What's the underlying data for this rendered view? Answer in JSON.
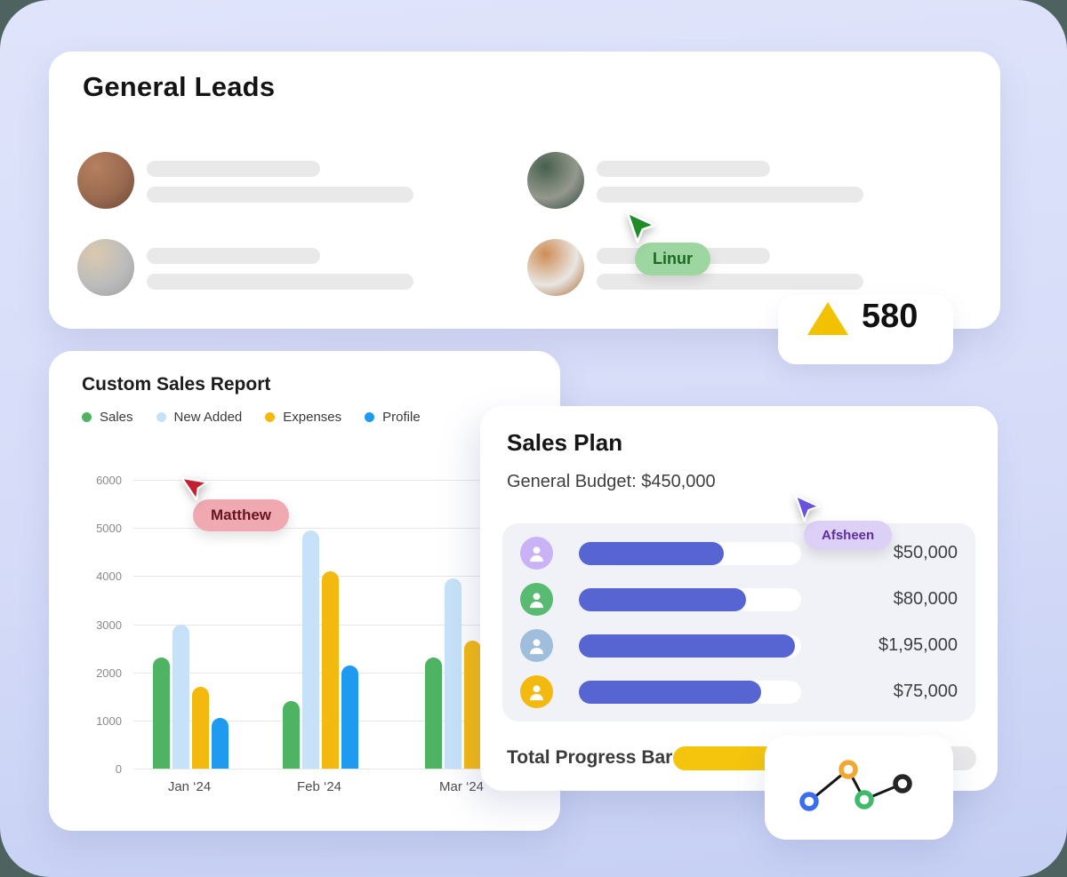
{
  "page": {
    "outer_bg": "#4E6360",
    "canvas_bg": "#D6DCF8"
  },
  "general_leads": {
    "title": "General Leads",
    "rows": [
      {
        "avatar": "woman-red-cardigan",
        "avatar_colors": [
          "#9a6a50",
          "#b5805f",
          "#6e4636"
        ]
      },
      {
        "avatar": "man-beige-shirt",
        "avatar_colors": [
          "#bcbcbc",
          "#dbc9ae",
          "#9e9e9e"
        ]
      },
      {
        "avatar": "woman-green-top",
        "avatar_colors": [
          "#95988d",
          "#47604e",
          "#2e463a"
        ]
      },
      {
        "avatar": "woman-with-tablet",
        "avatar_colors": [
          "#e8e6e2",
          "#cf8d55",
          "#a9672f"
        ]
      }
    ],
    "collab_cursor": {
      "label": "Linur",
      "cursor_color": "#1F8D27",
      "pill_bg": "#9ED6A1",
      "pill_text": "#1B6A23"
    }
  },
  "metric_badge": {
    "value": "580",
    "triangle_color": "#F2C200"
  },
  "sales_report": {
    "title": "Custom Sales Report",
    "legend": [
      {
        "label": "Sales",
        "color": "#4FB364"
      },
      {
        "label": "New Added",
        "color": "#C7E2F8"
      },
      {
        "label": "Expenses",
        "color": "#F4B90E"
      },
      {
        "label": "Profile",
        "color": "#1E9BF0"
      }
    ],
    "collab_cursor": {
      "label": "Matthew",
      "cursor_color": "#C2202F",
      "pill_bg": "#F1A9B1",
      "pill_text": "#641721"
    }
  },
  "sales_plan": {
    "title": "Sales Plan",
    "subtitle": "General Budget: $450,000",
    "progress_color": "#5765D3",
    "rows": [
      {
        "avatar_color": "#C9B2F5",
        "progress_pct": 65,
        "amount": "$50,000"
      },
      {
        "avatar_color": "#57BB72",
        "progress_pct": 75,
        "amount": "$80,000"
      },
      {
        "avatar_color": "#9FBEDC",
        "progress_pct": 97,
        "amount": "$1,95,000"
      },
      {
        "avatar_color": "#F4B90E",
        "progress_pct": 82,
        "amount": "$75,000"
      }
    ],
    "total": {
      "label": "Total Progress Bar",
      "pct": 34,
      "fill_color": "#F4C50C"
    },
    "collab_cursor": {
      "label": "Afsheen",
      "cursor_color": "#6A52DD",
      "pill_bg": "#DCD0F6",
      "pill_text": "#5D2E9E"
    }
  },
  "chart_data": [
    {
      "type": "bar",
      "title": "Custom Sales Report",
      "categories": [
        "Jan ‘24",
        "Feb ‘24",
        "Mar ‘24"
      ],
      "series": [
        {
          "name": "Sales",
          "color": "#4FB364",
          "values": [
            2300,
            1400,
            2300
          ]
        },
        {
          "name": "New Added",
          "color": "#C7E2F8",
          "values": [
            3000,
            4950,
            3950
          ]
        },
        {
          "name": "Expenses",
          "color": "#F4B90E",
          "values": [
            1700,
            4100,
            2650
          ]
        },
        {
          "name": "Profile",
          "color": "#1E9BF0",
          "values": [
            1050,
            2150,
            null
          ]
        }
      ],
      "ylim": [
        0,
        6000
      ],
      "yticks": [
        0,
        1000,
        2000,
        3000,
        4000,
        5000,
        6000
      ],
      "grid": true,
      "legend_position": "top"
    },
    {
      "type": "line",
      "points": [
        {
          "x": 30,
          "y": 49,
          "color": "#3B6EEF"
        },
        {
          "x": 74,
          "y": 13,
          "color": "#F0A832"
        },
        {
          "x": 92,
          "y": 47,
          "color": "#3FBA6C"
        },
        {
          "x": 135,
          "y": 29,
          "color": "#252525"
        }
      ],
      "line_color": "#161616"
    }
  ]
}
